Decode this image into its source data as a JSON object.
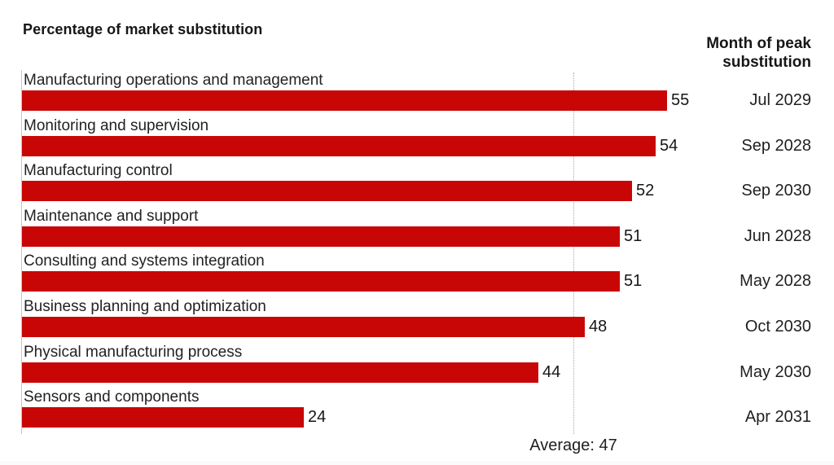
{
  "page": {
    "title": "Percentage of market substitution",
    "secondary_header": "Month of peak substitution",
    "average_label": "Average: 47"
  },
  "colors": {
    "bar": "#c90606",
    "text": "#1a1a1a",
    "axis_line": "#c7c7c7",
    "average_line": "#a8a8a8"
  },
  "chart_data": {
    "type": "bar",
    "orientation": "horizontal",
    "title": "Percentage of market substitution",
    "categories": [
      "Manufacturing operations and management",
      "Monitoring and supervision",
      "Manufacturing control",
      "Maintenance and support",
      "Consulting and systems integration",
      "Business planning and optimization",
      "Physical manufacturing process",
      "Sensors and components"
    ],
    "values": [
      55,
      54,
      52,
      51,
      51,
      48,
      44,
      24
    ],
    "secondary_column": {
      "label": "Month of peak substitution",
      "values": [
        "Jul 2029",
        "Sep 2028",
        "Sep 2030",
        "Jun 2028",
        "May 2028",
        "Oct 2030",
        "May 2030",
        "Apr 2031"
      ]
    },
    "average": 47,
    "average_annotation": "Average: 47",
    "xlim": [
      0,
      60
    ],
    "value_labels_shown": true,
    "grid": false,
    "legend": "none"
  }
}
